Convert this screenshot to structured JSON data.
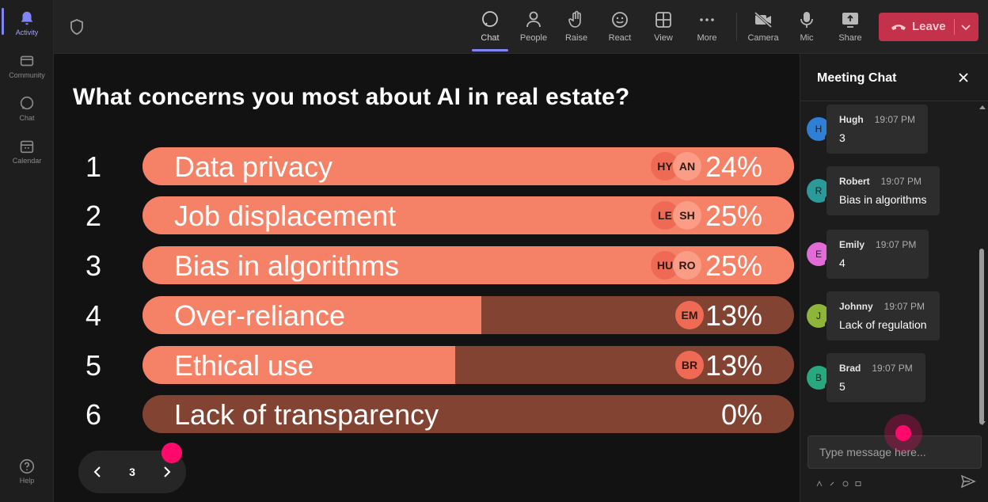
{
  "rail": {
    "items": [
      {
        "label": "Activity",
        "icon": "bell-icon"
      },
      {
        "label": "Community",
        "icon": "community-icon"
      },
      {
        "label": "Chat",
        "icon": "chat-icon"
      },
      {
        "label": "Calendar",
        "icon": "calendar-icon"
      }
    ],
    "help": {
      "label": "Help",
      "icon": "help-icon"
    }
  },
  "topbar": {
    "buttons": [
      {
        "label": "Chat",
        "icon": "chat-icon"
      },
      {
        "label": "People",
        "icon": "people-icon"
      },
      {
        "label": "Raise",
        "icon": "raise-hand-icon"
      },
      {
        "label": "React",
        "icon": "react-icon"
      },
      {
        "label": "View",
        "icon": "view-grid-icon"
      },
      {
        "label": "More",
        "icon": "more-icon"
      },
      {
        "label": "Camera",
        "icon": "camera-off-icon"
      },
      {
        "label": "Mic",
        "icon": "mic-icon"
      },
      {
        "label": "Share",
        "icon": "share-icon"
      }
    ],
    "leave_label": "Leave",
    "colors": {
      "leave": "#c4314b",
      "accent": "#7f85f5"
    }
  },
  "poll": {
    "question": "What concerns you most about AI in real estate?",
    "colors": {
      "fill": "#f58166",
      "track": "#834333"
    },
    "options": [
      {
        "rank": "1",
        "label": "Data privacy",
        "percent_label": "24%",
        "fill_fraction": 1.0,
        "avatars": [
          "HY",
          "AN"
        ]
      },
      {
        "rank": "2",
        "label": "Job displacement",
        "percent_label": "25%",
        "fill_fraction": 1.0,
        "avatars": [
          "LE",
          "SH"
        ]
      },
      {
        "rank": "3",
        "label": "Bias in algorithms",
        "percent_label": "25%",
        "fill_fraction": 1.0,
        "avatars": [
          "HU",
          "RO"
        ]
      },
      {
        "rank": "4",
        "label": "Over-reliance",
        "percent_label": "13%",
        "fill_fraction": 0.52,
        "avatars": [
          "EM"
        ]
      },
      {
        "rank": "5",
        "label": "Ethical use",
        "percent_label": "13%",
        "fill_fraction": 0.48,
        "avatars": [
          "BR"
        ]
      },
      {
        "rank": "6",
        "label": "Lack of transparency",
        "percent_label": "0%",
        "fill_fraction": 0.0,
        "avatars": []
      }
    ],
    "page": "3"
  },
  "chat": {
    "title": "Meeting Chat",
    "messages": [
      {
        "initial": "H",
        "name": "Hugh",
        "time": "19:07 PM",
        "text": "3",
        "color": "#2f7fd6"
      },
      {
        "initial": "R",
        "name": "Robert",
        "time": "19:07 PM",
        "text": "Bias in algorithms",
        "color": "#2a9a9a"
      },
      {
        "initial": "E",
        "name": "Emily",
        "time": "19:07 PM",
        "text": "4",
        "color": "#e36bd8"
      },
      {
        "initial": "J",
        "name": "Johnny",
        "time": "19:07 PM",
        "text": "Lack of regulation",
        "color": "#8cb53a"
      },
      {
        "initial": "B",
        "name": "Brad",
        "time": "19:07 PM",
        "text": "5",
        "color": "#27a87f"
      }
    ],
    "composer_placeholder": "Type message here..."
  }
}
